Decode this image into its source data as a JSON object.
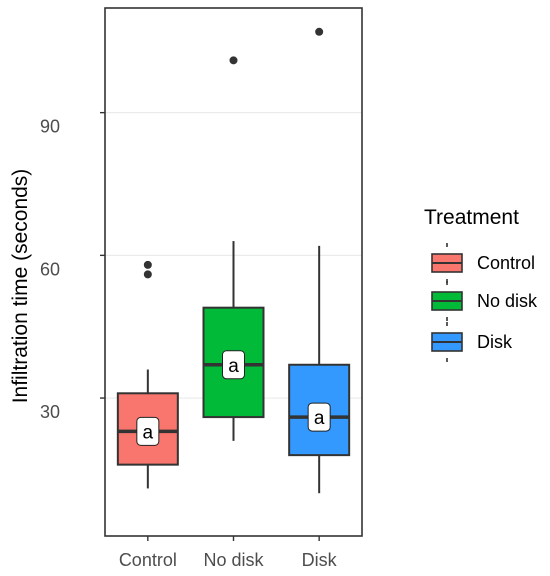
{
  "chart_data": {
    "type": "box",
    "ylabel": "Infiltration time (seconds)",
    "ylim": [
      1,
      112
    ],
    "yticks": [
      30,
      60,
      90
    ],
    "grid": true,
    "categories": [
      "Control",
      "No disk",
      "Disk"
    ],
    "boxes": [
      {
        "name": "Control",
        "whisker_low": 11,
        "q1": 16,
        "median": 23,
        "q3": 31,
        "whisker_high": 36,
        "outliers": [
          56,
          58
        ],
        "label": "a",
        "color": "#F8766D"
      },
      {
        "name": "No disk",
        "whisker_low": 21,
        "q1": 26,
        "median": 37,
        "q3": 49,
        "whisker_high": 63,
        "outliers": [
          101
        ],
        "label": "a",
        "color": "#00BA38"
      },
      {
        "name": "Disk",
        "whisker_low": 10,
        "q1": 18,
        "median": 26,
        "q3": 37,
        "whisker_high": 62,
        "outliers": [
          107
        ],
        "label": "a",
        "color": "#3399FF"
      }
    ],
    "legend": {
      "title": "Treatment",
      "placement": "right",
      "entries": [
        "Control",
        "No disk",
        "Disk"
      ]
    }
  }
}
